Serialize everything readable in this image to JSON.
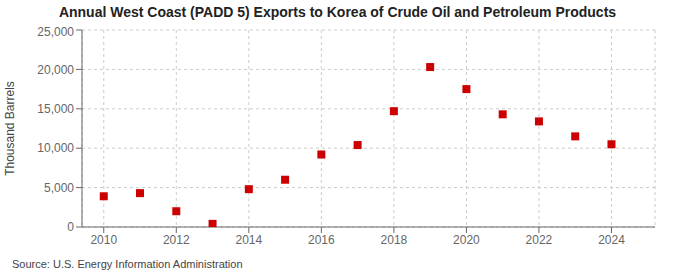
{
  "chart_data": {
    "type": "scatter",
    "title": "Annual West Coast (PADD 5) Exports to Korea of Crude Oil and Petroleum Products",
    "ylabel": "Thousand Barrels",
    "annotations": [
      "Source: U.S. Energy Information Administration"
    ],
    "x": [
      2010,
      2011,
      2012,
      2013,
      2014,
      2015,
      2016,
      2017,
      2018,
      2019,
      2020,
      2021,
      2022,
      2023,
      2024
    ],
    "values": [
      3900,
      4300,
      2000,
      400,
      4800,
      6000,
      9200,
      10400,
      14700,
      20300,
      17500,
      14300,
      13400,
      11500,
      10500
    ],
    "color": "#cc0000",
    "marker": "square",
    "xlim": [
      2009.4,
      2025.2
    ],
    "xticks": [
      2010,
      2012,
      2014,
      2016,
      2018,
      2020,
      2022,
      2024
    ],
    "ylim": [
      0,
      25000
    ],
    "yticks": [
      0,
      {
        "value": 5000,
        "label": "5,000"
      },
      {
        "value": 10000,
        "label": "10,000"
      },
      {
        "value": 15000,
        "label": "15,000"
      },
      {
        "value": 20000,
        "label": "20,000"
      },
      {
        "value": 25000,
        "label": "25,000"
      }
    ],
    "grid": true
  }
}
